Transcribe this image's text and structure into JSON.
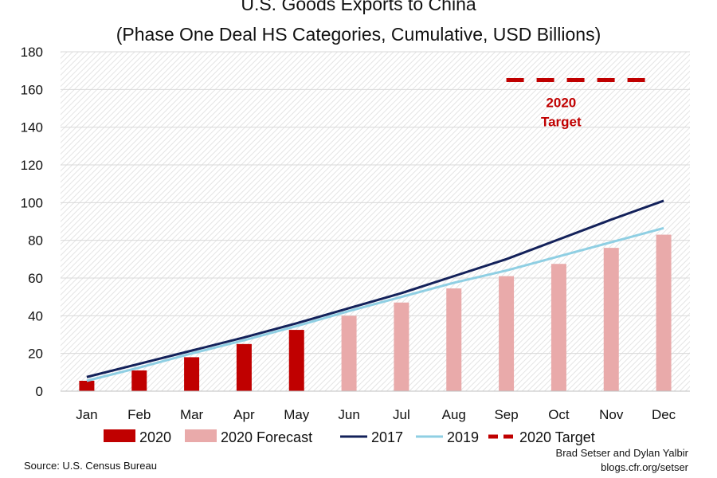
{
  "chart_data": {
    "type": "bar",
    "title": "U.S. Goods Exports to China",
    "subtitle": "(Phase One Deal HS Categories, Cumulative, USD Billions)",
    "categories": [
      "Jan",
      "Feb",
      "Mar",
      "Apr",
      "May",
      "Jun",
      "Jul",
      "Aug",
      "Sep",
      "Oct",
      "Nov",
      "Dec"
    ],
    "ylim": [
      0,
      180
    ],
    "yticks": [
      0,
      20,
      40,
      60,
      80,
      100,
      120,
      140,
      160,
      180
    ],
    "grid": "hatched background",
    "series": [
      {
        "name": "2020",
        "kind": "bar",
        "color": "#c00000",
        "values": [
          5.5,
          11,
          18,
          25,
          32.5,
          null,
          null,
          null,
          null,
          null,
          null,
          null
        ]
      },
      {
        "name": "2020 Forecast",
        "kind": "bar",
        "color": "#e9aaaa",
        "values": [
          null,
          null,
          null,
          null,
          null,
          40,
          47,
          54.5,
          61,
          67.5,
          76,
          83
        ]
      },
      {
        "name": "2017",
        "kind": "line",
        "color": "#13215a",
        "values": [
          7.5,
          14.5,
          21.5,
          28.5,
          36,
          44,
          52,
          61,
          70,
          80.5,
          91,
          101
        ]
      },
      {
        "name": "2019",
        "kind": "line",
        "color": "#8fcfe3",
        "values": [
          5.5,
          12.5,
          20,
          27,
          34.5,
          42.5,
          50,
          57.5,
          64,
          71.5,
          79,
          86.5
        ]
      },
      {
        "name": "2020 Target",
        "kind": "dashed-line",
        "color": "#c00000",
        "x_range": [
          "Sep",
          "Dec"
        ],
        "value": 165
      }
    ],
    "annotation": {
      "line1": "2020",
      "line2": "Target"
    },
    "legend_position": "bottom"
  },
  "footer": {
    "source": "Source: U.S. Census Bureau",
    "credit_line1": "Brad Setser and Dylan Yalbir",
    "credit_line2": "blogs.cfr.org/setser"
  }
}
